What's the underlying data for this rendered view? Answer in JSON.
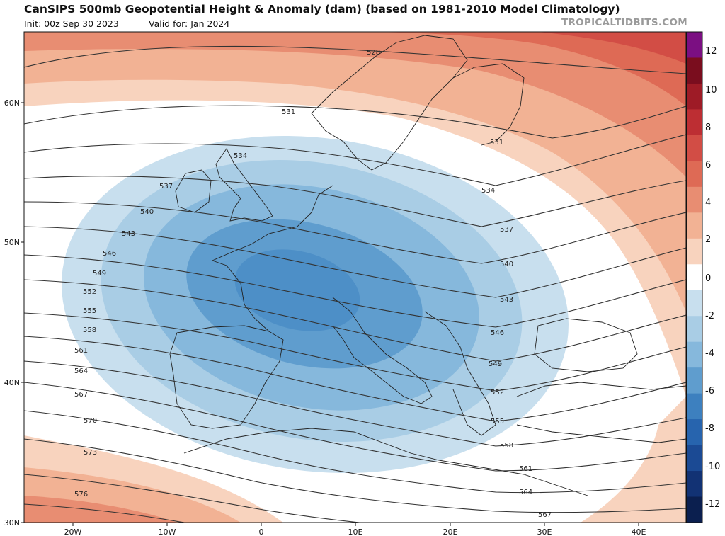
{
  "header": {
    "title": "CanSIPS 500mb Geopotential Height & Anomaly (dam) (based on 1981-2010 Model Climatology)",
    "init": "Init: 00z Sep 30 2023",
    "valid": "Valid for: Jan 2024",
    "credit": "TROPICALTIDBITS.COM"
  },
  "map": {
    "lat_labels": [
      "60N",
      "50N",
      "40N",
      "30N"
    ],
    "lon_labels": [
      "20W",
      "10W",
      "0",
      "10E",
      "20E",
      "30E",
      "40E"
    ],
    "contour_labels": [
      "528",
      "531",
      "531",
      "534",
      "534",
      "537",
      "537",
      "540",
      "540",
      "543",
      "543",
      "546",
      "546",
      "549",
      "549",
      "552",
      "552",
      "555",
      "555",
      "558",
      "558",
      "561",
      "561",
      "564",
      "564",
      "567",
      "567",
      "570",
      "573",
      "576"
    ]
  },
  "colorbar": {
    "ticks": [
      "12",
      "10",
      "8",
      "6",
      "4",
      "2",
      "0",
      "-2",
      "-4",
      "-6",
      "-8",
      "-10",
      "-12"
    ],
    "colors": [
      "#7b0f82",
      "#7a0d1e",
      "#9e1b26",
      "#bd2e33",
      "#d24d45",
      "#de6a55",
      "#e88d72",
      "#f2b294",
      "#f8d3be",
      "#ffffff",
      "#c8dfee",
      "#a9cde5",
      "#86b8dc",
      "#5f9dce",
      "#3d80bf",
      "#2764ae",
      "#1b4a94",
      "#123274",
      "#0b1f4f"
    ]
  }
}
